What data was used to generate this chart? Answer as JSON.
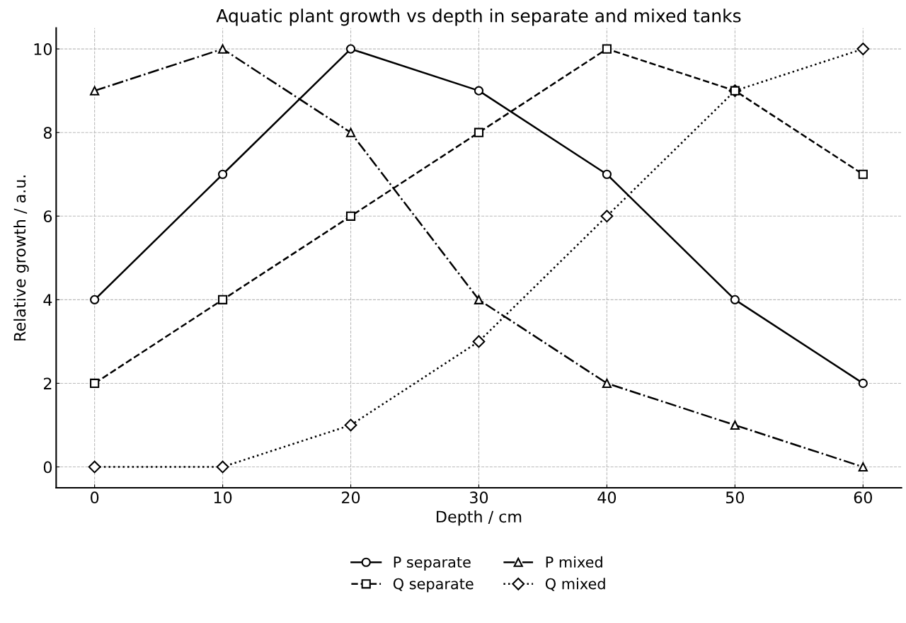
{
  "chart_data": {
    "type": "line",
    "title": "Aquatic plant growth vs depth in separate and mixed tanks",
    "xlabel": "Depth / cm",
    "ylabel": "Relative growth / a.u.",
    "x": [
      0,
      10,
      20,
      30,
      40,
      50,
      60
    ],
    "series": [
      {
        "name": "P separate",
        "color": "#000000",
        "marker": "circle",
        "line_style": "solid",
        "values": [
          4,
          7,
          10,
          9,
          7,
          4,
          2
        ]
      },
      {
        "name": "Q separate",
        "color": "#000000",
        "marker": "square",
        "line_style": "dashed",
        "values": [
          2,
          4,
          6,
          8,
          10,
          9,
          7
        ]
      },
      {
        "name": "P mixed",
        "color": "#000000",
        "marker": "triangle",
        "line_style": "dashdot",
        "values": [
          9,
          10,
          8,
          4,
          2,
          1,
          0
        ]
      },
      {
        "name": "Q mixed",
        "color": "#000000",
        "marker": "diamond",
        "line_style": "dotted",
        "values": [
          0,
          0,
          1,
          3,
          6,
          9,
          10
        ]
      }
    ],
    "xlim": [
      -3,
      63
    ],
    "ylim": [
      -0.5,
      10.5
    ],
    "xticks": [
      0,
      10,
      20,
      30,
      40,
      50,
      60
    ],
    "yticks": [
      0,
      2,
      4,
      6,
      8,
      10
    ],
    "grid": true,
    "legend": "bottom"
  }
}
